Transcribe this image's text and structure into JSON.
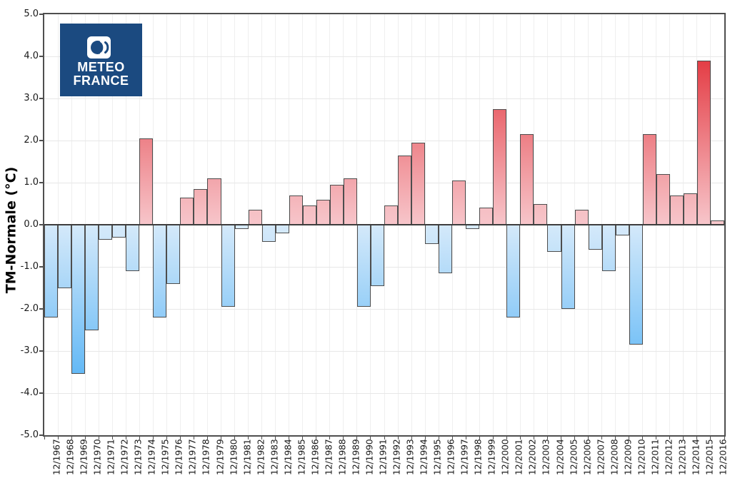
{
  "logo": {
    "line1": "METEO",
    "line2": "FRANCE",
    "bg_color": "#1b4a80"
  },
  "chart_data": {
    "type": "bar",
    "title": "",
    "xlabel": "",
    "ylabel": "TM-Normale (°C)",
    "ylim": [
      -5.0,
      5.0
    ],
    "y_tick_step": 1.0,
    "grid": true,
    "legend": "none",
    "y_ticks": [
      "5.0",
      "4.0",
      "3.0",
      "2.0",
      "1.0",
      "0.0",
      "-1.0",
      "-2.0",
      "-3.0",
      "-4.0",
      "-5.0"
    ],
    "categories": [
      "12/1967",
      "12/1968",
      "12/1969",
      "12/1970",
      "12/1971",
      "12/1972",
      "12/1973",
      "12/1974",
      "12/1975",
      "12/1976",
      "12/1977",
      "12/1978",
      "12/1979",
      "12/1980",
      "12/1981",
      "12/1982",
      "12/1983",
      "12/1984",
      "12/1985",
      "12/1986",
      "12/1987",
      "12/1988",
      "12/1989",
      "12/1990",
      "12/1991",
      "12/1992",
      "12/1993",
      "12/1994",
      "12/1995",
      "12/1996",
      "12/1997",
      "12/1998",
      "12/1999",
      "12/2000",
      "12/2001",
      "12/2002",
      "12/2003",
      "12/2004",
      "12/2005",
      "12/2006",
      "12/2007",
      "12/2008",
      "12/2009",
      "12/2010",
      "12/2011",
      "12/2012",
      "12/2013",
      "12/2014",
      "12/2015",
      "12/2016"
    ],
    "values": [
      -2.2,
      -1.5,
      -3.55,
      -2.5,
      -0.35,
      -0.3,
      -1.1,
      2.05,
      -2.2,
      -1.4,
      0.65,
      0.85,
      1.1,
      -1.95,
      -0.1,
      0.35,
      -0.4,
      -0.2,
      0.7,
      0.45,
      0.6,
      0.95,
      1.1,
      -1.95,
      -1.45,
      0.45,
      1.65,
      1.95,
      -0.45,
      -1.15,
      1.05,
      -0.1,
      0.4,
      2.75,
      -2.2,
      2.15,
      0.5,
      -0.65,
      -2.0,
      0.35,
      -0.6,
      -1.1,
      -0.25,
      -2.85,
      2.15,
      1.2,
      0.7,
      0.75,
      3.9,
      0.1
    ],
    "colors": {
      "positive_deep": "#e43e46",
      "positive_pale": "#f8ced2",
      "negative_deep": "#62b8f6",
      "negative_pale": "#dbecfa",
      "bar_border": "#4d4d4d",
      "zero_line": "#3d3d3d",
      "axis_border": "#4e4e4e",
      "grid_horizontal": "#e7e7e7",
      "grid_vertical": "#efefef",
      "text": "#1a1a1a"
    }
  }
}
